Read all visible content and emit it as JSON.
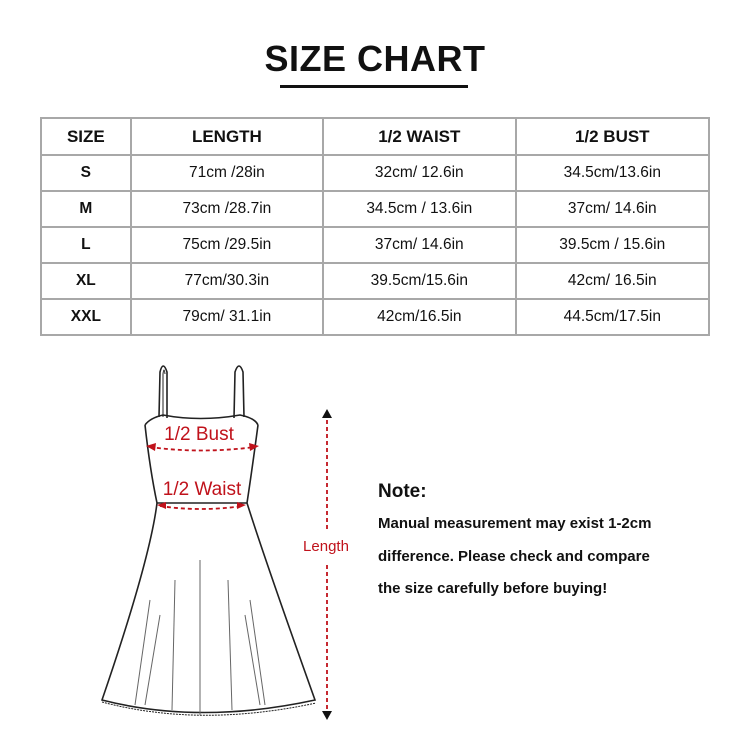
{
  "title": "SIZE CHART",
  "table": {
    "headers": [
      "SIZE",
      "LENGTH",
      "1/2 WAIST",
      "1/2 BUST"
    ],
    "rows": [
      [
        "S",
        "71cm /28in",
        "32cm/ 12.6in",
        "34.5cm/13.6in"
      ],
      [
        "M",
        "73cm /28.7in",
        "34.5cm / 13.6in",
        "37cm/ 14.6in"
      ],
      [
        "L",
        "75cm /29.5in",
        "37cm/ 14.6in",
        "39.5cm / 15.6in"
      ],
      [
        "XL",
        "77cm/30.3in",
        "39.5cm/15.6in",
        "42cm/ 16.5in"
      ],
      [
        "XXL",
        "79cm/ 31.1in",
        "42cm/16.5in",
        "44.5cm/17.5in"
      ]
    ]
  },
  "diagram": {
    "bust_label": "1/2 Bust",
    "waist_label": "1/2 Waist",
    "length_label": "Length",
    "accent_color": "#c0121b"
  },
  "note": {
    "title": "Note:",
    "lines": [
      "Manual measurement may exist 1-2cm",
      "difference. Please check and compare",
      "the size carefully before buying!"
    ]
  }
}
